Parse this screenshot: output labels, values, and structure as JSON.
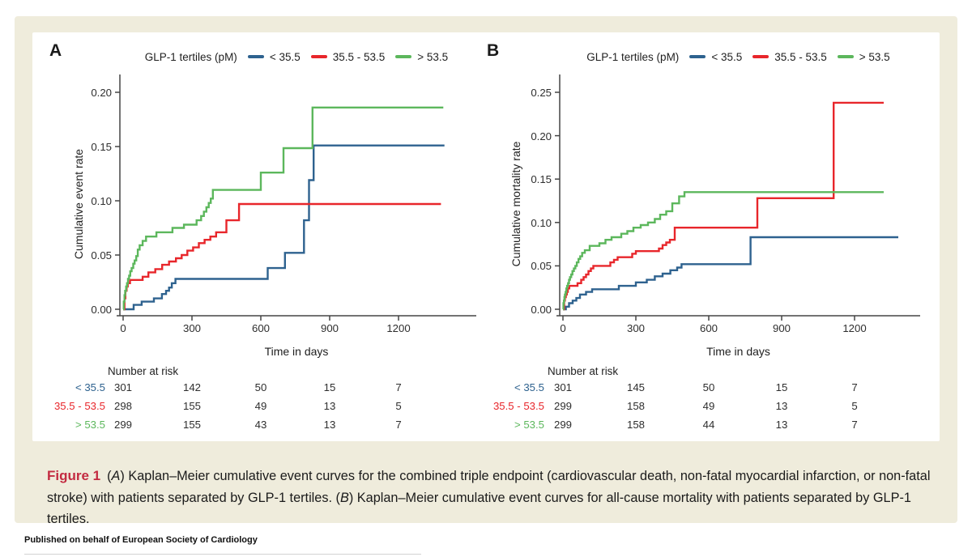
{
  "page": {
    "background": "#ffffff",
    "figure_box_color": "#efecdc"
  },
  "caption": {
    "label": "Figure 1",
    "seg1": "(",
    "a": "A",
    "seg2": ") Kaplan–Meier cumulative event curves for the combined triple endpoint (cardiovascular death, non-fatal myocardial infarction, or non-fatal stroke) with patients separated by GLP-1 tertiles. (",
    "b": "B",
    "seg3": ") Kaplan–Meier cumulative event curves for all-cause mortality with patients separated by GLP-1 tertiles."
  },
  "footer": {
    "text": "Published on behalf of European Society of Cardiology"
  },
  "chart_data": [
    {
      "panel_label": "A",
      "type": "line",
      "subtype": "kaplan-meier-step",
      "legend_title": "GLP-1 tertiles (pM)",
      "legend_position": "top",
      "grid": false,
      "xlabel": "Time in days",
      "ylabel": "Cumulative event rate",
      "xlim": [
        0,
        1400
      ],
      "ylim": [
        0,
        0.2
      ],
      "xticks": [
        "0",
        "300",
        "600",
        "900",
        "1200"
      ],
      "yticks": [
        "0.00",
        "0.05",
        "0.10",
        "0.15",
        "0.20"
      ],
      "series": [
        {
          "name": "< 35.5",
          "color": "#2e628f",
          "end_day": 1400,
          "steps": [
            [
              0,
              0
            ],
            [
              46,
              0.004
            ],
            [
              81,
              0.007
            ],
            [
              134,
              0.01
            ],
            [
              169,
              0.014
            ],
            [
              187,
              0.017
            ],
            [
              200,
              0.02
            ],
            [
              212,
              0.024
            ],
            [
              228,
              0.028
            ],
            [
              630,
              0.038
            ],
            [
              705,
              0.052
            ],
            [
              788,
              0.082
            ],
            [
              810,
              0.119
            ],
            [
              830,
              0.151
            ]
          ]
        },
        {
          "name": "35.5 - 53.5",
          "color": "#e8262b",
          "end_day": 1385,
          "steps": [
            [
              0,
              0
            ],
            [
              6,
              0.01
            ],
            [
              10,
              0.017
            ],
            [
              15,
              0.021
            ],
            [
              20,
              0.024
            ],
            [
              30,
              0.027
            ],
            [
              85,
              0.03
            ],
            [
              110,
              0.034
            ],
            [
              140,
              0.037
            ],
            [
              170,
              0.041
            ],
            [
              200,
              0.044
            ],
            [
              230,
              0.047
            ],
            [
              255,
              0.05
            ],
            [
              280,
              0.054
            ],
            [
              305,
              0.057
            ],
            [
              330,
              0.061
            ],
            [
              355,
              0.064
            ],
            [
              380,
              0.067
            ],
            [
              405,
              0.071
            ],
            [
              450,
              0.082
            ],
            [
              505,
              0.097
            ]
          ]
        },
        {
          "name": "> 53.5",
          "color": "#5cb75c",
          "end_day": 1395,
          "steps": [
            [
              0,
              0
            ],
            [
              3,
              0.007
            ],
            [
              6,
              0.013
            ],
            [
              9,
              0.017
            ],
            [
              13,
              0.021
            ],
            [
              17,
              0.024
            ],
            [
              21,
              0.028
            ],
            [
              26,
              0.031
            ],
            [
              31,
              0.035
            ],
            [
              37,
              0.038
            ],
            [
              44,
              0.042
            ],
            [
              50,
              0.045
            ],
            [
              57,
              0.049
            ],
            [
              64,
              0.055
            ],
            [
              72,
              0.059
            ],
            [
              85,
              0.063
            ],
            [
              100,
              0.067
            ],
            [
              145,
              0.071
            ],
            [
              215,
              0.075
            ],
            [
              265,
              0.078
            ],
            [
              320,
              0.082
            ],
            [
              340,
              0.086
            ],
            [
              352,
              0.09
            ],
            [
              363,
              0.094
            ],
            [
              373,
              0.098
            ],
            [
              382,
              0.102
            ],
            [
              391,
              0.11
            ],
            [
              600,
              0.126
            ],
            [
              699,
              0.1485
            ],
            [
              825,
              0.186
            ]
          ]
        }
      ],
      "risk_table": {
        "header": "Number at risk",
        "time_columns": [
          "0",
          "300",
          "600",
          "900",
          "1200"
        ],
        "rows": [
          {
            "label": "< 35.5",
            "color": "#2e628f",
            "values": [
              "301",
              "142",
              "50",
              "15",
              "7"
            ]
          },
          {
            "label": "35.5 - 53.5",
            "color": "#e8262b",
            "values": [
              "298",
              "155",
              "49",
              "13",
              "5"
            ]
          },
          {
            "label": "> 53.5",
            "color": "#5cb75c",
            "values": [
              "299",
              "155",
              "43",
              "13",
              "7"
            ]
          }
        ]
      }
    },
    {
      "panel_label": "B",
      "type": "line",
      "subtype": "kaplan-meier-step",
      "legend_title": "GLP-1 tertiles (pM)",
      "legend_position": "top",
      "grid": false,
      "xlabel": "Time in days",
      "ylabel": "Cumulative mortality rate",
      "xlim": [
        0,
        1400
      ],
      "ylim": [
        0,
        0.25
      ],
      "xticks": [
        "0",
        "300",
        "600",
        "900",
        "1200"
      ],
      "yticks": [
        "0.00",
        "0.05",
        "0.10",
        "0.15",
        "0.20",
        "0.25"
      ],
      "series": [
        {
          "name": "< 35.5",
          "color": "#2e628f",
          "end_day": 1380,
          "steps": [
            [
              0,
              0
            ],
            [
              12,
              0.003
            ],
            [
              25,
              0.007
            ],
            [
              40,
              0.01
            ],
            [
              55,
              0.013
            ],
            [
              70,
              0.017
            ],
            [
              95,
              0.02
            ],
            [
              120,
              0.023
            ],
            [
              230,
              0.027
            ],
            [
              300,
              0.031
            ],
            [
              345,
              0.034
            ],
            [
              378,
              0.038
            ],
            [
              410,
              0.041
            ],
            [
              442,
              0.045
            ],
            [
              470,
              0.048
            ],
            [
              488,
              0.052
            ],
            [
              772,
              0.083
            ]
          ]
        },
        {
          "name": "35.5 - 53.5",
          "color": "#e8262b",
          "end_day": 1320,
          "steps": [
            [
              0,
              0
            ],
            [
              5,
              0.01
            ],
            [
              8,
              0.014
            ],
            [
              12,
              0.017
            ],
            [
              16,
              0.02
            ],
            [
              20,
              0.024
            ],
            [
              26,
              0.027
            ],
            [
              60,
              0.03
            ],
            [
              75,
              0.034
            ],
            [
              85,
              0.037
            ],
            [
              95,
              0.04
            ],
            [
              105,
              0.044
            ],
            [
              115,
              0.047
            ],
            [
              125,
              0.05
            ],
            [
              195,
              0.054
            ],
            [
              210,
              0.057
            ],
            [
              225,
              0.06
            ],
            [
              285,
              0.064
            ],
            [
              300,
              0.067
            ],
            [
              395,
              0.07
            ],
            [
              410,
              0.074
            ],
            [
              425,
              0.077
            ],
            [
              440,
              0.08
            ],
            [
              460,
              0.094
            ],
            [
              800,
              0.128
            ],
            [
              1114,
              0.238
            ]
          ]
        },
        {
          "name": "> 53.5",
          "color": "#5cb75c",
          "end_day": 1320,
          "steps": [
            [
              0,
              0
            ],
            [
              2,
              0.007
            ],
            [
              4,
              0.01
            ],
            [
              6,
              0.014
            ],
            [
              8,
              0.017
            ],
            [
              11,
              0.02
            ],
            [
              14,
              0.024
            ],
            [
              17,
              0.027
            ],
            [
              21,
              0.03
            ],
            [
              25,
              0.034
            ],
            [
              29,
              0.037
            ],
            [
              34,
              0.04
            ],
            [
              39,
              0.044
            ],
            [
              45,
              0.047
            ],
            [
              51,
              0.05
            ],
            [
              57,
              0.054
            ],
            [
              64,
              0.058
            ],
            [
              71,
              0.061
            ],
            [
              79,
              0.065
            ],
            [
              90,
              0.068
            ],
            [
              110,
              0.073
            ],
            [
              150,
              0.076
            ],
            [
              175,
              0.08
            ],
            [
              200,
              0.083
            ],
            [
              240,
              0.087
            ],
            [
              265,
              0.09
            ],
            [
              290,
              0.094
            ],
            [
              320,
              0.097
            ],
            [
              350,
              0.1
            ],
            [
              378,
              0.104
            ],
            [
              400,
              0.109
            ],
            [
              425,
              0.113
            ],
            [
              450,
              0.122
            ],
            [
              478,
              0.13
            ],
            [
              500,
              0.135
            ]
          ]
        }
      ],
      "risk_table": {
        "header": "Number at risk",
        "time_columns": [
          "0",
          "300",
          "600",
          "900",
          "1200"
        ],
        "rows": [
          {
            "label": "< 35.5",
            "color": "#2e628f",
            "values": [
              "301",
              "145",
              "50",
              "15",
              "7"
            ]
          },
          {
            "label": "35.5 - 53.5",
            "color": "#e8262b",
            "values": [
              "299",
              "158",
              "49",
              "13",
              "5"
            ]
          },
          {
            "label": "> 53.5",
            "color": "#5cb75c",
            "values": [
              "299",
              "158",
              "44",
              "13",
              "7"
            ]
          }
        ]
      }
    }
  ]
}
